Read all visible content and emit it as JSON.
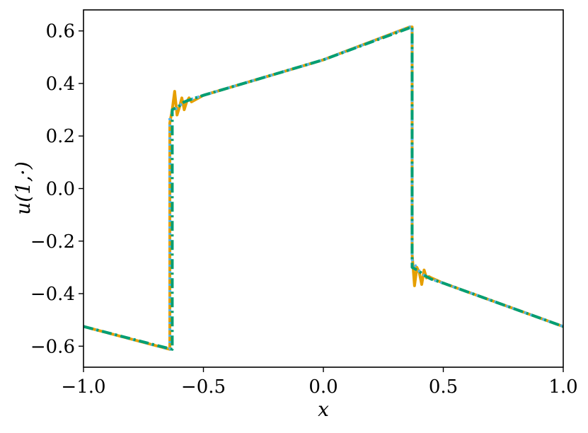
{
  "chart_data": {
    "type": "line",
    "title": "",
    "xlabel": "x",
    "ylabel": "u(1,·)",
    "xlim": [
      -1.0,
      1.0
    ],
    "ylim": [
      -0.68,
      0.68
    ],
    "xticks": [
      -1.0,
      -0.5,
      0.0,
      0.5,
      1.0
    ],
    "xtick_labels": [
      "−1.0",
      "−0.5",
      "0.0",
      "0.5",
      "1.0"
    ],
    "yticks": [
      -0.6,
      -0.4,
      -0.2,
      0.0,
      0.2,
      0.4,
      0.6
    ],
    "ytick_labels": [
      "−0.6",
      "−0.4",
      "−0.2",
      "0.0",
      "0.2",
      "0.4",
      "0.6"
    ],
    "grid": false,
    "legend": "none",
    "series": [
      {
        "color": "#e69f00",
        "style": "solid",
        "x": [
          -1.0,
          -0.64,
          -0.64,
          -0.63,
          -0.62,
          -0.61,
          -0.6,
          -0.59,
          -0.58,
          -0.57,
          -0.56,
          -0.55,
          -0.5,
          0.0,
          0.36,
          0.37,
          0.37,
          0.38,
          0.39,
          0.4,
          0.41,
          0.42,
          0.43,
          0.44,
          0.45,
          0.5,
          1.0
        ],
        "y": [
          -0.525,
          -0.612,
          0.25,
          0.3,
          0.37,
          0.28,
          0.31,
          0.345,
          0.3,
          0.33,
          0.345,
          0.33,
          0.355,
          0.49,
          0.615,
          0.615,
          -0.25,
          -0.37,
          -0.3,
          -0.32,
          -0.365,
          -0.31,
          -0.34,
          -0.335,
          -0.34,
          -0.36,
          -0.525
        ]
      },
      {
        "color": "#56b4e9",
        "style": "dotted",
        "x": [
          -1.0,
          -0.64,
          -0.64,
          -0.63,
          -0.62,
          -0.6,
          -0.58,
          -0.55,
          -0.5,
          0.0,
          0.36,
          0.37,
          0.37,
          0.38,
          0.39,
          0.4,
          0.42,
          0.45,
          0.5,
          1.0
        ],
        "y": [
          -0.525,
          -0.612,
          0.27,
          0.29,
          0.3,
          0.315,
          0.33,
          0.34,
          0.355,
          0.49,
          0.615,
          0.615,
          -0.27,
          -0.29,
          -0.3,
          -0.315,
          -0.33,
          -0.345,
          -0.36,
          -0.525
        ]
      },
      {
        "color": "#009e73",
        "style": "dashdot",
        "x": [
          -1.0,
          -0.63,
          -0.63,
          -0.62,
          -0.6,
          -0.58,
          -0.55,
          -0.5,
          0.0,
          0.37,
          0.37,
          0.38,
          0.4,
          0.42,
          0.45,
          0.5,
          1.0
        ],
        "y": [
          -0.525,
          -0.612,
          0.3,
          0.305,
          0.315,
          0.33,
          0.34,
          0.355,
          0.49,
          0.615,
          -0.3,
          -0.305,
          -0.315,
          -0.33,
          -0.345,
          -0.36,
          -0.525
        ]
      }
    ]
  }
}
